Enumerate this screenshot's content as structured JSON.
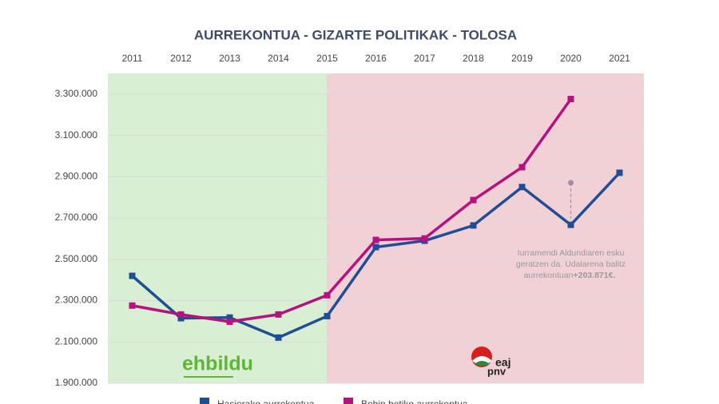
{
  "chart_data": {
    "type": "line",
    "title": "AURREKONTUA - GIZARTE POLITIKAK - TOLOSA",
    "categories": [
      "2011",
      "2012",
      "2013",
      "2014",
      "2015",
      "2016",
      "2017",
      "2018",
      "2019",
      "2020",
      "2021"
    ],
    "series": [
      {
        "name": "Hasierako aurrekontua",
        "color": "#1f4e96",
        "values": [
          2420000,
          2215000,
          2218000,
          2121000,
          2225000,
          2559000,
          2590000,
          2664000,
          2850000,
          2667000,
          2919000
        ]
      },
      {
        "name": "Behin betiko aurrekontua",
        "color": "#b5127f",
        "values": [
          2276000,
          2233000,
          2198000,
          2233000,
          2326000,
          2594000,
          2601000,
          2787000,
          2946000,
          3276000,
          null
        ]
      }
    ],
    "ylim": [
      1900000,
      3400000
    ],
    "yticks": [
      {
        "value": 1900000,
        "label": "1.900.000"
      },
      {
        "value": 2100000,
        "label": "2.100.000"
      },
      {
        "value": 2300000,
        "label": "2.300.000"
      },
      {
        "value": 2500000,
        "label": "2.500.000"
      },
      {
        "value": 2700000,
        "label": "2.700.000"
      },
      {
        "value": 2900000,
        "label": "2.900.000"
      },
      {
        "value": 3100000,
        "label": "3.100.000"
      },
      {
        "value": 3300000,
        "label": "3.300.000"
      }
    ],
    "grid": true,
    "logos": [
      "ehbildu",
      "eaj",
      "pnv"
    ],
    "annotation": {
      "lines": [
        "Iurramendi Aldundiaren esku",
        "geratzen da. Udalarena balitz",
        "aurrekontuan"
      ],
      "highlight": "+203.871€.",
      "delta": 203871
    }
  }
}
